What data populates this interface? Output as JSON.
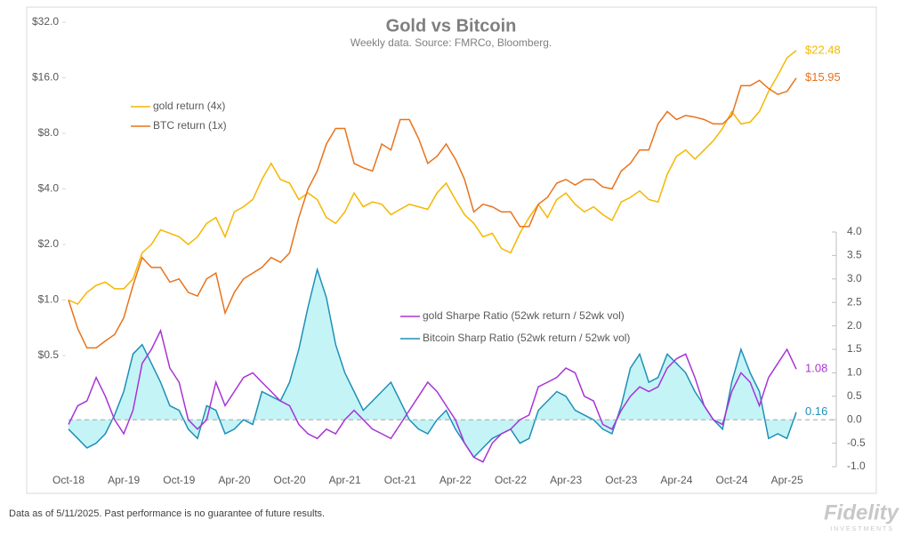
{
  "chart_data": {
    "type": "line",
    "title": "Gold vs Bitcoin",
    "subtitle": "Weekly data.  Source: FMRCo, Bloomberg.",
    "ylog": true,
    "x": [
      "2018-10",
      "2018-11",
      "2018-12",
      "2019-01",
      "2019-02",
      "2019-03",
      "2019-04",
      "2019-05",
      "2019-06",
      "2019-07",
      "2019-08",
      "2019-09",
      "2019-10",
      "2019-11",
      "2019-12",
      "2020-01",
      "2020-02",
      "2020-03",
      "2020-04",
      "2020-05",
      "2020-06",
      "2020-07",
      "2020-08",
      "2020-09",
      "2020-10",
      "2020-11",
      "2020-12",
      "2021-01",
      "2021-02",
      "2021-03",
      "2021-04",
      "2021-05",
      "2021-06",
      "2021-07",
      "2021-08",
      "2021-09",
      "2021-10",
      "2021-11",
      "2021-12",
      "2022-01",
      "2022-02",
      "2022-03",
      "2022-04",
      "2022-05",
      "2022-06",
      "2022-07",
      "2022-08",
      "2022-09",
      "2022-10",
      "2022-11",
      "2022-12",
      "2023-01",
      "2023-02",
      "2023-03",
      "2023-04",
      "2023-05",
      "2023-06",
      "2023-07",
      "2023-08",
      "2023-09",
      "2023-10",
      "2023-11",
      "2023-12",
      "2024-01",
      "2024-02",
      "2024-03",
      "2024-04",
      "2024-05",
      "2024-06",
      "2024-07",
      "2024-08",
      "2024-09",
      "2024-10",
      "2024-11",
      "2024-12",
      "2025-01",
      "2025-02",
      "2025-03",
      "2025-04",
      "2025-05"
    ],
    "xlim": [
      "2018-10",
      "2025-05"
    ],
    "xticks": [
      {
        "value": "2018-10",
        "label": "Oct-18"
      },
      {
        "value": "2019-04",
        "label": "Apr-19"
      },
      {
        "value": "2019-10",
        "label": "Oct-19"
      },
      {
        "value": "2020-04",
        "label": "Apr-20"
      },
      {
        "value": "2020-10",
        "label": "Oct-20"
      },
      {
        "value": "2021-04",
        "label": "Apr-21"
      },
      {
        "value": "2021-10",
        "label": "Oct-21"
      },
      {
        "value": "2022-04",
        "label": "Apr-22"
      },
      {
        "value": "2022-10",
        "label": "Oct-22"
      },
      {
        "value": "2023-04",
        "label": "Apr-23"
      },
      {
        "value": "2023-10",
        "label": "Oct-23"
      },
      {
        "value": "2024-04",
        "label": "Apr-24"
      },
      {
        "value": "2024-10",
        "label": "Oct-24"
      },
      {
        "value": "2025-04",
        "label": "Apr-25"
      }
    ],
    "ylim": [
      0.125,
      32
    ],
    "yticks": [
      {
        "value": 0.5,
        "label": "$0.5"
      },
      {
        "value": 1,
        "label": "$1.0"
      },
      {
        "value": 2,
        "label": "$2.0"
      },
      {
        "value": 4,
        "label": "$4.0"
      },
      {
        "value": 8,
        "label": "$8.0"
      },
      {
        "value": 16,
        "label": "$16.0"
      },
      {
        "value": 32,
        "label": "$32.0"
      }
    ],
    "y2lim": [
      -1,
      8.47
    ],
    "y2ticks": [
      {
        "value": -1,
        "label": "-1.0"
      },
      -0.5,
      {
        "value": 0,
        "label": "0.0"
      },
      0.5,
      {
        "value": 1,
        "label": "1.0"
      },
      1.5,
      {
        "value": 2,
        "label": "2.0"
      },
      2.5,
      {
        "value": 3,
        "label": "3.0"
      },
      3.5,
      {
        "value": 4,
        "label": "4.0"
      }
    ],
    "series": [
      {
        "name": "gold return (4x)",
        "color": "#f5b700",
        "values": [
          1.0,
          0.95,
          1.1,
          1.2,
          1.25,
          1.15,
          1.15,
          1.3,
          1.8,
          2.0,
          2.4,
          2.3,
          2.2,
          2.0,
          2.2,
          2.6,
          2.8,
          2.2,
          3.0,
          3.2,
          3.5,
          4.5,
          5.5,
          4.5,
          4.3,
          3.5,
          3.8,
          3.5,
          2.8,
          2.6,
          3.0,
          3.8,
          3.2,
          3.4,
          3.3,
          2.9,
          3.1,
          3.3,
          3.2,
          3.1,
          3.8,
          4.3,
          3.5,
          2.9,
          2.6,
          2.2,
          2.3,
          1.9,
          1.8,
          2.3,
          2.8,
          3.3,
          2.8,
          3.5,
          3.8,
          3.3,
          3.0,
          3.2,
          2.9,
          2.7,
          3.4,
          3.6,
          3.9,
          3.5,
          3.4,
          4.8,
          6.0,
          6.5,
          5.8,
          6.5,
          7.3,
          8.5,
          10.5,
          9.0,
          9.2,
          10.5,
          13.5,
          16.5,
          20.5,
          22.48
        ],
        "value_labels": [
          null,
          null,
          null,
          null,
          null,
          null,
          null,
          null,
          null,
          null,
          null,
          null,
          null,
          null,
          null,
          null,
          null,
          null,
          null,
          null,
          null,
          null,
          null,
          null,
          null,
          null,
          null,
          null,
          null,
          null,
          null,
          null,
          null,
          null,
          null,
          null,
          null,
          null,
          null,
          null,
          null,
          null,
          null,
          null,
          null,
          null,
          null,
          null,
          null,
          null,
          null,
          null,
          null,
          null,
          null,
          null,
          null,
          null,
          null,
          null,
          null,
          null,
          null,
          null,
          null,
          null,
          null,
          null,
          null,
          null,
          null,
          null,
          null,
          null,
          null,
          null,
          null,
          null,
          null,
          "$22.48"
        ]
      },
      {
        "name": "BTC return (1x)",
        "color": "#e8731c",
        "values": [
          1.0,
          0.7,
          0.55,
          0.55,
          0.6,
          0.65,
          0.8,
          1.2,
          1.7,
          1.5,
          1.5,
          1.25,
          1.3,
          1.1,
          1.05,
          1.3,
          1.4,
          0.85,
          1.1,
          1.3,
          1.4,
          1.5,
          1.7,
          1.6,
          1.8,
          2.8,
          4.0,
          5.0,
          7.0,
          8.5,
          8.5,
          5.5,
          5.2,
          5.0,
          7.0,
          6.5,
          9.5,
          9.5,
          7.5,
          5.5,
          6.0,
          7.0,
          5.8,
          4.5,
          3.0,
          3.3,
          3.2,
          3.0,
          3.0,
          2.5,
          2.5,
          3.3,
          3.6,
          4.3,
          4.5,
          4.2,
          4.5,
          4.5,
          4.1,
          4.0,
          5.0,
          5.5,
          6.5,
          6.5,
          9.0,
          10.5,
          9.5,
          10.0,
          9.8,
          9.5,
          9.0,
          9.0,
          10.0,
          14.5,
          14.5,
          15.5,
          14.0,
          13.0,
          13.5,
          15.95
        ],
        "value_labels": [
          null,
          null,
          null,
          null,
          null,
          null,
          null,
          null,
          null,
          null,
          null,
          null,
          null,
          null,
          null,
          null,
          null,
          null,
          null,
          null,
          null,
          null,
          null,
          null,
          null,
          null,
          null,
          null,
          null,
          null,
          null,
          null,
          null,
          null,
          null,
          null,
          null,
          null,
          null,
          null,
          null,
          null,
          null,
          null,
          null,
          null,
          null,
          null,
          null,
          null,
          null,
          null,
          null,
          null,
          null,
          null,
          null,
          null,
          null,
          null,
          null,
          null,
          null,
          null,
          null,
          null,
          null,
          null,
          null,
          null,
          null,
          null,
          null,
          null,
          null,
          null,
          null,
          null,
          null,
          "$15.95"
        ]
      },
      {
        "name": "gold Sharpe Ratio (52wk return / 52wk vol)",
        "color": "#a833d6",
        "axis": "y2",
        "end_label": true,
        "values": [
          -0.1,
          0.3,
          0.4,
          0.9,
          0.5,
          0.0,
          -0.3,
          0.2,
          1.2,
          1.5,
          1.9,
          1.1,
          0.8,
          0.0,
          -0.2,
          0.0,
          0.8,
          0.3,
          0.6,
          0.9,
          1.0,
          0.8,
          0.6,
          0.4,
          0.3,
          -0.1,
          -0.3,
          -0.4,
          -0.2,
          -0.3,
          0.0,
          0.2,
          0.0,
          -0.2,
          -0.3,
          -0.4,
          -0.1,
          0.2,
          0.5,
          0.8,
          0.6,
          0.3,
          0.0,
          -0.5,
          -0.8,
          -0.9,
          -0.5,
          -0.3,
          -0.2,
          0.0,
          0.1,
          0.7,
          0.8,
          0.9,
          1.1,
          1.0,
          0.5,
          0.4,
          -0.1,
          -0.2,
          0.2,
          0.5,
          0.7,
          0.6,
          0.7,
          1.1,
          1.3,
          1.4,
          0.9,
          0.3,
          0.0,
          -0.1,
          0.6,
          1.0,
          0.8,
          0.3,
          0.9,
          1.2,
          1.5,
          1.08
        ]
      },
      {
        "name": "Bitcoin Sharp Ratio (52wk return / 52wk vol)",
        "color": "#1f8fb8",
        "axis": "y2",
        "end_label": true,
        "area_fill": "#c4f4f6",
        "values": [
          -0.2,
          -0.4,
          -0.6,
          -0.5,
          -0.3,
          0.1,
          0.6,
          1.4,
          1.6,
          1.2,
          0.8,
          0.3,
          0.2,
          -0.2,
          -0.4,
          0.3,
          0.2,
          -0.3,
          -0.2,
          0.0,
          -0.1,
          0.6,
          0.5,
          0.4,
          0.8,
          1.5,
          2.4,
          3.2,
          2.6,
          1.6,
          1.0,
          0.6,
          0.2,
          0.4,
          0.6,
          0.8,
          0.4,
          0.0,
          -0.2,
          -0.3,
          0.0,
          0.2,
          -0.2,
          -0.5,
          -0.8,
          -0.6,
          -0.4,
          -0.3,
          -0.2,
          -0.5,
          -0.4,
          0.2,
          0.4,
          0.6,
          0.5,
          0.2,
          0.1,
          0.0,
          -0.2,
          -0.3,
          0.3,
          1.1,
          1.4,
          0.8,
          0.9,
          1.4,
          1.2,
          1.0,
          0.6,
          0.3,
          0.0,
          -0.2,
          0.8,
          1.5,
          1.0,
          0.6,
          -0.4,
          -0.3,
          -0.4,
          0.16
        ]
      }
    ],
    "zero_line": true
  },
  "footer": "Data as of 5/11/2025. Past performance is no guarantee of future results.",
  "logo": {
    "name": "Fidelity",
    "tagline": "INVESTMENTS"
  }
}
